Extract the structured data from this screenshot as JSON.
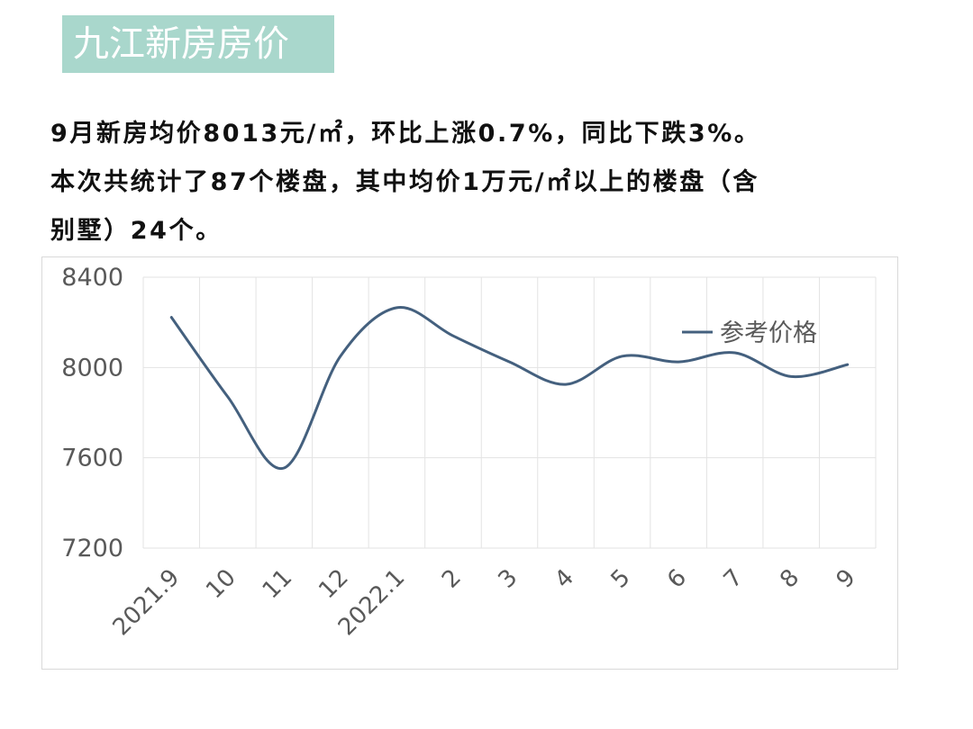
{
  "page": {
    "title": "九江新房房价",
    "summary_lines": [
      "9月新房均价8013元/㎡，环比上涨0.7%，同比下跌3%。",
      "本次共统计了87个楼盘，其中均价1万元/㎡以上的楼盘（含",
      "别墅）24个。"
    ]
  },
  "chart_data": {
    "type": "line",
    "title": "",
    "xlabel": "",
    "ylabel": "",
    "categories": [
      "2021.9",
      "10",
      "11",
      "12",
      "2022.1",
      "2",
      "3",
      "4",
      "5",
      "6",
      "7",
      "8",
      "9"
    ],
    "series": [
      {
        "name": "参考价格",
        "values": [
          8222,
          7870,
          7555,
          8050,
          8265,
          8140,
          8025,
          7925,
          8050,
          8025,
          8065,
          7960,
          8013
        ],
        "color": "#44607e"
      }
    ],
    "ylim": [
      7200,
      8400
    ],
    "yticks": [
      "8400",
      "8000",
      "7600",
      "7200"
    ],
    "grid": true,
    "smooth": true,
    "legend_position": "top-right"
  }
}
